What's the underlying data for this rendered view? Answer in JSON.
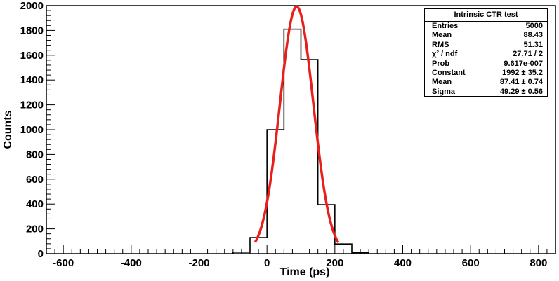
{
  "chart_data": {
    "type": "histogram",
    "xlabel": "Time (ps)",
    "ylabel": "Counts",
    "xlim": [
      -650,
      850
    ],
    "ylim": [
      0,
      2000
    ],
    "x_ticks": [
      "-600",
      "-400",
      "-200",
      "0",
      "200",
      "400",
      "600",
      "800"
    ],
    "y_ticks": [
      "0",
      "200",
      "400",
      "600",
      "800",
      "1000",
      "1200",
      "1400",
      "1600",
      "1800",
      "2000"
    ],
    "bin_width": 50,
    "bins": [
      {
        "x0": -100,
        "x1": -50,
        "count": 12
      },
      {
        "x0": -50,
        "x1": 0,
        "count": 130
      },
      {
        "x0": 0,
        "x1": 50,
        "count": 1000
      },
      {
        "x0": 50,
        "x1": 100,
        "count": 1810
      },
      {
        "x0": 100,
        "x1": 150,
        "count": 1565
      },
      {
        "x0": 150,
        "x1": 200,
        "count": 395
      },
      {
        "x0": 200,
        "x1": 250,
        "count": 78
      },
      {
        "x0": 250,
        "x1": 300,
        "count": 8
      }
    ],
    "fit": {
      "function": "gaus",
      "constant": 1992,
      "mean": 87.41,
      "sigma": 49.29,
      "range": [
        -35,
        210
      ],
      "color": "#e8201c"
    },
    "grid": false,
    "legend": "top-right"
  },
  "stats": {
    "title": "Intrinsic CTR test",
    "rows": [
      {
        "label": "Entries",
        "value": "5000"
      },
      {
        "label": "Mean",
        "value": "88.43"
      },
      {
        "label": "RMS",
        "value": "51.31"
      },
      {
        "label": "χ² / ndf",
        "value": "27.71 / 2"
      },
      {
        "label": "Prob",
        "value": "9.617e-007"
      },
      {
        "label": "Constant",
        "value": "1992 ± 35.2"
      },
      {
        "label": "Mean",
        "value": "87.41 ± 0.74"
      },
      {
        "label": "Sigma",
        "value": "49.29 ± 0.56"
      }
    ]
  }
}
